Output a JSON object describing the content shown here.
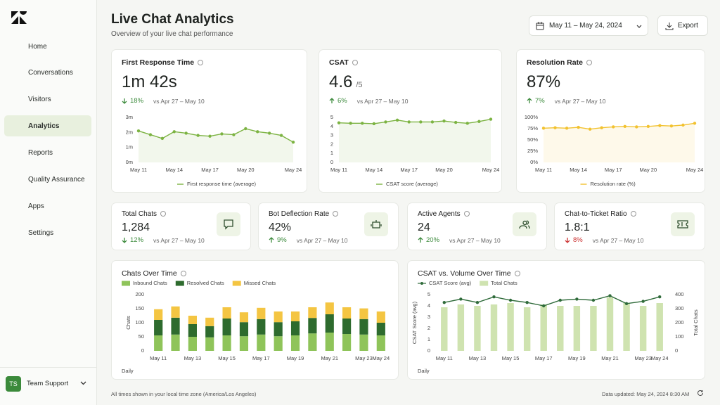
{
  "sidebar": {
    "nav": [
      "Home",
      "Conversations",
      "Visitors",
      "Analytics",
      "Reports",
      "Quality Assurance",
      "Apps",
      "Settings"
    ],
    "user": {
      "initials": "TS",
      "name": "Team Support"
    }
  },
  "header": {
    "title": "Live Chat Analytics",
    "subtitle": "Overview of your live chat performance",
    "date_range": "May 11 – May 24, 2024",
    "export": "Export"
  },
  "kpis": [
    {
      "title": "First Response Time",
      "value": "1m 42s",
      "change": "18%",
      "comparison": "vs Apr 27 – May 10"
    },
    {
      "title": "CSAT",
      "value": "4.6",
      "unit": "/5",
      "change": "6%",
      "comparison": "vs Apr 27 – May 10"
    },
    {
      "title": "Resolution Rate",
      "value": "87%",
      "change": "7%",
      "comparison": "vs Apr 27 – May 10"
    }
  ],
  "stats": [
    {
      "title": "Total Chats",
      "value": "1,284",
      "change": "12%",
      "comparison": "vs Apr 27 – May 10"
    },
    {
      "title": "Bot Deflection Rate",
      "value": "42%",
      "change": "9%",
      "comparison": "vs Apr 27 – May 10"
    },
    {
      "title": "Active Agents",
      "value": "24",
      "change": "20%",
      "comparison": "vs Apr 27 – May 10"
    },
    {
      "title": "Chat-to-Ticket Ratio",
      "value": "1.8:1",
      "change": "8%",
      "comparison": "vs Apr 27 – May 10"
    }
  ],
  "chart_data": [
    {
      "type": "line",
      "categories": [
        "May 11",
        null,
        null,
        "May 14",
        null,
        null,
        "May 17",
        null,
        null,
        "May 20",
        null,
        null,
        null,
        "May 24"
      ],
      "ylim": [
        0,
        3
      ],
      "yticks": [
        {
          "value": 0,
          "label": "0m"
        },
        {
          "value": 1,
          "label": "1m"
        },
        {
          "value": 2,
          "label": "2m"
        },
        {
          "value": 3,
          "label": "3m"
        }
      ],
      "series": [
        {
          "name": "First response time (average)",
          "color": "#7cb342",
          "values": [
            2.1,
            1.85,
            1.6,
            2.05,
            1.95,
            1.8,
            1.75,
            1.9,
            1.85,
            2.25,
            2.05,
            1.95,
            1.8,
            1.35
          ]
        }
      ]
    },
    {
      "type": "line",
      "categories": [
        "May 11",
        null,
        null,
        "May 14",
        null,
        null,
        "May 17",
        null,
        null,
        "May 20",
        null,
        null,
        null,
        "May 24"
      ],
      "ylim": [
        0,
        5
      ],
      "yticks": [
        0,
        1,
        2,
        3,
        4,
        5
      ],
      "series": [
        {
          "name": "CSAT score (average)",
          "color": "#7cb342",
          "values": [
            4.4,
            4.35,
            4.35,
            4.3,
            4.5,
            4.7,
            4.5,
            4.5,
            4.5,
            4.6,
            4.45,
            4.35,
            4.55,
            4.8
          ]
        }
      ]
    },
    {
      "type": "line",
      "categories": [
        "May 11",
        null,
        null,
        "May 14",
        null,
        null,
        "May 17",
        null,
        null,
        "May 20",
        null,
        null,
        null,
        "May 24"
      ],
      "ylim": [
        0,
        100
      ],
      "yticks": [
        {
          "value": 0,
          "label": "0%"
        },
        {
          "value": 25,
          "label": "25%"
        },
        {
          "value": 50,
          "label": "50%"
        },
        {
          "value": 75,
          "label": "75%"
        },
        {
          "value": 100,
          "label": "100%"
        }
      ],
      "series": [
        {
          "name": "Resolution rate (%)",
          "color": "#f2c230",
          "values": [
            76,
            77,
            76,
            78,
            74,
            77,
            79,
            80,
            79,
            80,
            82,
            81,
            83,
            87
          ]
        }
      ]
    },
    {
      "type": "stacked_bar",
      "title": "Chats Over Time",
      "y_label": "Chats",
      "x_label": "Daily",
      "categories": [
        "May 11",
        null,
        "May 13",
        null,
        "May 15",
        null,
        "May 17",
        null,
        "May 19",
        null,
        "May 21",
        null,
        "May 23",
        "May 24"
      ],
      "ylim": [
        0,
        200
      ],
      "yticks": [
        0,
        50,
        100,
        150,
        200
      ],
      "series": [
        {
          "name": "Inbound Chats",
          "color": "#8fc45a",
          "values": [
            55,
            58,
            50,
            48,
            55,
            52,
            58,
            52,
            55,
            62,
            65,
            60,
            58,
            55
          ]
        },
        {
          "name": "Resolved Chats",
          "color": "#2e6b2e",
          "values": [
            55,
            60,
            45,
            40,
            60,
            50,
            55,
            50,
            50,
            55,
            65,
            55,
            55,
            45
          ]
        },
        {
          "name": "Missed Chats",
          "color": "#f4c542",
          "values": [
            38,
            40,
            30,
            30,
            40,
            35,
            40,
            38,
            35,
            38,
            42,
            40,
            38,
            40
          ]
        }
      ]
    },
    {
      "type": "combo",
      "title": "CSAT vs. Volume Over Time",
      "x_label": "Daily",
      "y_label": "CSAT Score (avg)",
      "y2_label": "Total Chats",
      "categories": [
        "May 11",
        null,
        "May 13",
        null,
        "May 15",
        null,
        "May 17",
        null,
        "May 19",
        null,
        "May 21",
        null,
        "May 23",
        "May 24"
      ],
      "ylim": [
        0,
        5
      ],
      "yticks": [
        0,
        1,
        2,
        3,
        4,
        5
      ],
      "y2lim": [
        0,
        400
      ],
      "y2ticks": [
        0,
        100,
        200,
        300,
        400
      ],
      "series": [
        {
          "name": "CSAT Score (avg)",
          "type": "line",
          "color": "#2f6b3a",
          "values": [
            4.3,
            4.6,
            4.3,
            4.8,
            4.5,
            4.3,
            4.0,
            4.5,
            4.6,
            4.5,
            4.9,
            4.2,
            4.4,
            4.8
          ]
        },
        {
          "name": "Total Chats",
          "type": "bar",
          "axis": "y2",
          "color": "#cfe3b0",
          "values": [
            310,
            330,
            320,
            330,
            340,
            310,
            330,
            320,
            320,
            320,
            380,
            340,
            320,
            340
          ]
        }
      ]
    }
  ],
  "footer": {
    "timezone": "All times shown in your local time zone (America/Los Angeles)",
    "updated": "Data updated: May 24, 2024 8:30 AM"
  }
}
